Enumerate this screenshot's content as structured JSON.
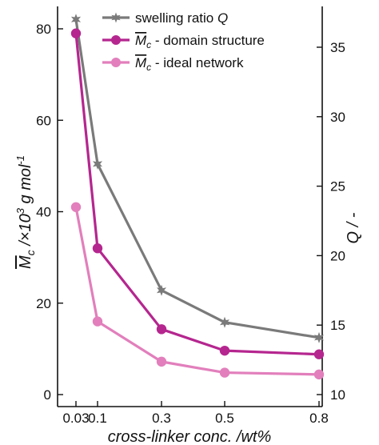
{
  "chart_data": {
    "type": "line",
    "x": [
      0.03,
      0.1,
      0.3,
      0.5,
      0.8
    ],
    "xtick_labels": [
      "0.03",
      "0.1",
      "0.3",
      "0.5",
      "0.8"
    ],
    "xlabel": "cross-linker conc. /wt%",
    "ylabel": "M̅c /×10³ g mol⁻¹",
    "ylabel_parts": {
      "m": "M",
      "c": "c",
      "pre": " /×10",
      "exp1": "3",
      "mid": " g mol",
      "exp2": "-1"
    },
    "ylim": [
      -2,
      85
    ],
    "yticks": [
      0,
      20,
      40,
      60,
      80
    ],
    "y2label": "Q / -",
    "y2lim": [
      9.7,
      38
    ],
    "y2ticks": [
      10,
      15,
      20,
      25,
      30,
      35
    ],
    "grid": false,
    "legend_position": "top-center",
    "legend": [
      {
        "pre": "swelling ratio ",
        "italic": "Q",
        "post": ""
      },
      {
        "pre": "",
        "italic": "M",
        "sub": "c",
        "post": " - domain structure"
      },
      {
        "pre": "",
        "italic": "M",
        "sub": "c",
        "post": " - ideal network"
      }
    ],
    "series": [
      {
        "name": "swelling ratio Q",
        "axis": "right",
        "color": "#7a7a7a",
        "marker": "star",
        "values": [
          37.0,
          26.6,
          17.5,
          15.2,
          14.1
        ]
      },
      {
        "name": "M̅c - domain structure",
        "axis": "left",
        "color": "#b5268f",
        "marker": "circle",
        "values": [
          79,
          32,
          14.3,
          9.6,
          8.8
        ]
      },
      {
        "name": "M̅c - ideal network",
        "axis": "left",
        "color": "#e27fbc",
        "marker": "circle",
        "values": [
          41,
          16,
          7.2,
          4.8,
          4.4
        ]
      }
    ]
  }
}
